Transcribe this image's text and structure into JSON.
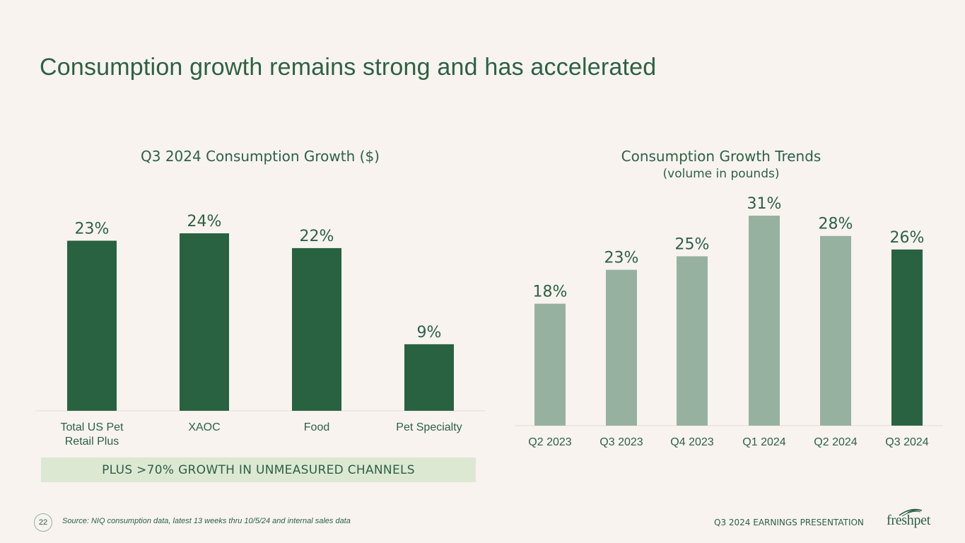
{
  "page": {
    "title": "Consumption growth remains strong and has accelerated",
    "callout": "PLUS >70% GROWTH IN UNMEASURED CHANNELS",
    "page_number": "22",
    "source": "Source:  NIQ consumption data, latest 13 weeks thru 10/5/24 and internal sales data",
    "footer_label": "Q3 2024 EARNINGS PRESENTATION",
    "logo_text": "freshpet"
  },
  "colors": {
    "dark_green": "#286240",
    "sage": "#97b1a1",
    "text_green": "#2c6146",
    "background": "#f8f3ef",
    "callout_bg": "#dde8d3"
  },
  "chart_data": [
    {
      "type": "bar",
      "title": "Q3 2024 Consumption Growth ($)",
      "subtitle": "",
      "categories": [
        [
          "Total US Pet",
          "Retail Plus"
        ],
        [
          "XAOC"
        ],
        [
          "Food"
        ],
        [
          "Pet Specialty"
        ]
      ],
      "values": [
        23,
        24,
        22,
        9
      ],
      "value_labels": [
        "23%",
        "24%",
        "22%",
        "9%"
      ],
      "bar_colors": [
        "#286240",
        "#286240",
        "#286240",
        "#286240"
      ],
      "ylim": [
        0,
        24
      ],
      "grid": false
    },
    {
      "type": "bar",
      "title": "Consumption Growth Trends",
      "subtitle": "(volume in pounds)",
      "categories": [
        [
          "Q2 2023"
        ],
        [
          "Q3 2023"
        ],
        [
          "Q4 2023"
        ],
        [
          "Q1 2024"
        ],
        [
          "Q2 2024"
        ],
        [
          "Q3 2024"
        ]
      ],
      "values": [
        18,
        23,
        25,
        31,
        28,
        26
      ],
      "value_labels": [
        "18%",
        "23%",
        "25%",
        "31%",
        "28%",
        "26%"
      ],
      "bar_colors": [
        "#97b1a1",
        "#97b1a1",
        "#97b1a1",
        "#97b1a1",
        "#97b1a1",
        "#286240"
      ],
      "ylim": [
        0,
        31
      ],
      "grid": false
    }
  ]
}
